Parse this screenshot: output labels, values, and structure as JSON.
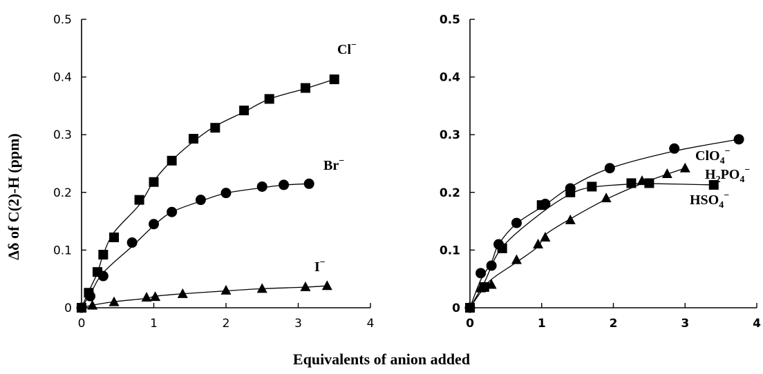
{
  "chart_data": [
    {
      "type": "scatter",
      "ylabel": "Δδ of C(2)-H (ppm)",
      "xlabel": "Equivalents of anion added",
      "xlim": [
        0,
        4
      ],
      "ylim": [
        0,
        0.5
      ],
      "x_ticks": [
        "0",
        "1",
        "2",
        "3",
        "4"
      ],
      "y_ticks": [
        "0",
        "0.1",
        "0.2",
        "0.3",
        "0.4",
        "0.5"
      ],
      "grid": false,
      "series": [
        {
          "name": "Cl⁻",
          "label_parts": {
            "main": "Cl",
            "sub": "",
            "sup": "−"
          },
          "marker": "square",
          "x": [
            0,
            0.1,
            0.22,
            0.3,
            0.45,
            0.8,
            1.0,
            1.25,
            1.55,
            1.85,
            2.25,
            2.6,
            3.1,
            3.5
          ],
          "y": [
            0,
            0.026,
            0.062,
            0.092,
            0.122,
            0.187,
            0.218,
            0.255,
            0.293,
            0.312,
            0.342,
            0.362,
            0.381,
            0.396
          ]
        },
        {
          "name": "Br⁻",
          "label_parts": {
            "main": "Br",
            "sub": "",
            "sup": "−"
          },
          "marker": "circle",
          "x": [
            0,
            0.12,
            0.3,
            0.7,
            1.0,
            1.25,
            1.65,
            2.0,
            2.5,
            2.8,
            3.15
          ],
          "y": [
            0,
            0.02,
            0.055,
            0.113,
            0.145,
            0.166,
            0.187,
            0.199,
            0.21,
            0.213,
            0.215
          ]
        },
        {
          "name": "I⁻",
          "label_parts": {
            "main": "I",
            "sub": "",
            "sup": "−"
          },
          "marker": "triangle",
          "x": [
            0,
            0.15,
            0.45,
            0.9,
            1.02,
            1.4,
            2.0,
            2.5,
            3.1,
            3.4
          ],
          "y": [
            0,
            0.004,
            0.01,
            0.018,
            0.019,
            0.024,
            0.03,
            0.033,
            0.036,
            0.038
          ]
        }
      ]
    },
    {
      "type": "scatter",
      "ylabel": "",
      "xlabel": "Equivalents of anion added",
      "xlim": [
        0,
        4
      ],
      "ylim": [
        0,
        0.5
      ],
      "x_ticks": [
        "0",
        "1",
        "2",
        "3",
        "4"
      ],
      "y_ticks": [
        "0",
        "0.1",
        "0.2",
        "0.3",
        "0.4",
        "0.5"
      ],
      "grid": false,
      "series": [
        {
          "name": "H₂PO₄⁻",
          "label_parts": {
            "main": "H",
            "sub": "2",
            "main2": "PO",
            "sub2": "4",
            "sup": "−"
          },
          "marker": "circle",
          "x": [
            0,
            0.15,
            0.3,
            0.4,
            0.65,
            1.05,
            1.4,
            1.95,
            2.85,
            3.75
          ],
          "y": [
            0,
            0.06,
            0.073,
            0.11,
            0.147,
            0.18,
            0.207,
            0.242,
            0.276,
            0.292
          ]
        },
        {
          "name": "ClO₄⁻",
          "label_parts": {
            "main": "ClO",
            "sub": "4",
            "sup": "−"
          },
          "marker": "triangle",
          "x": [
            0,
            0.15,
            0.3,
            0.65,
            0.95,
            1.05,
            1.4,
            1.9,
            2.4,
            2.75,
            3.0
          ],
          "y": [
            0,
            0.034,
            0.04,
            0.083,
            0.11,
            0.122,
            0.152,
            0.19,
            0.22,
            0.232,
            0.242
          ]
        },
        {
          "name": "HSO₄⁻",
          "label_parts": {
            "main": "HSO",
            "sub": "4",
            "sup": "−"
          },
          "marker": "square",
          "x": [
            0,
            0.2,
            0.45,
            1.0,
            1.4,
            1.7,
            2.25,
            2.5,
            3.4
          ],
          "y": [
            0,
            0.036,
            0.103,
            0.178,
            0.2,
            0.21,
            0.216,
            0.216,
            0.213
          ]
        }
      ]
    }
  ]
}
